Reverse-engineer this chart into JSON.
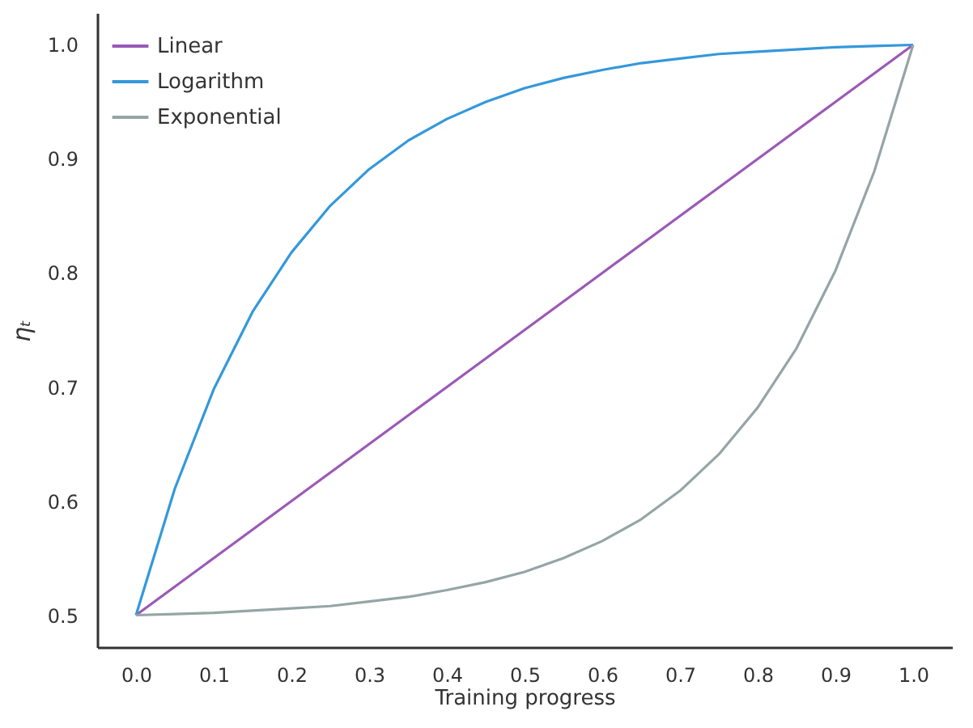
{
  "chart_data": {
    "type": "line",
    "xlabel": "Training progress",
    "ylabel": "ηₜ",
    "x": [
      0,
      0.05,
      0.1,
      0.15,
      0.2,
      0.25,
      0.3,
      0.35,
      0.4,
      0.45,
      0.5,
      0.55,
      0.6,
      0.65,
      0.7,
      0.75,
      0.8,
      0.85,
      0.9,
      0.95,
      1.0
    ],
    "series": [
      {
        "name": "Linear",
        "color": "#9b59b6",
        "values": [
          0.5,
          0.525,
          0.55,
          0.575,
          0.6,
          0.625,
          0.65,
          0.675,
          0.7,
          0.725,
          0.75,
          0.775,
          0.8,
          0.825,
          0.85,
          0.875,
          0.9,
          0.925,
          0.95,
          0.975,
          1.0
        ]
      },
      {
        "name": "Logarithm",
        "color": "#3498db",
        "values": [
          0.5,
          0.611,
          0.698,
          0.766,
          0.818,
          0.859,
          0.891,
          0.916,
          0.935,
          0.95,
          0.962,
          0.971,
          0.978,
          0.984,
          0.988,
          0.992,
          0.994,
          0.996,
          0.998,
          0.999,
          1.0
        ]
      },
      {
        "name": "Exponential",
        "color": "#95a5a6",
        "values": [
          0.5,
          0.501,
          0.502,
          0.504,
          0.506,
          0.508,
          0.512,
          0.516,
          0.522,
          0.529,
          0.538,
          0.55,
          0.565,
          0.584,
          0.609,
          0.641,
          0.682,
          0.734,
          0.802,
          0.889,
          1.0
        ]
      }
    ],
    "xlim": [
      -0.05,
      1.05
    ],
    "ylim": [
      0.472,
      1.028
    ],
    "xticks": [
      {
        "value": 0,
        "label": "0.0"
      },
      0.1,
      0.2,
      0.3,
      0.4,
      0.5,
      0.6,
      0.7,
      0.8,
      0.9,
      {
        "value": 1,
        "label": "1.0"
      }
    ],
    "yticks": [
      0.5,
      0.6,
      0.7,
      0.8,
      0.9,
      {
        "value": 1,
        "label": "1.0"
      }
    ],
    "grid": false,
    "legend": "top left",
    "marker": "none",
    "line_style": "solid"
  }
}
